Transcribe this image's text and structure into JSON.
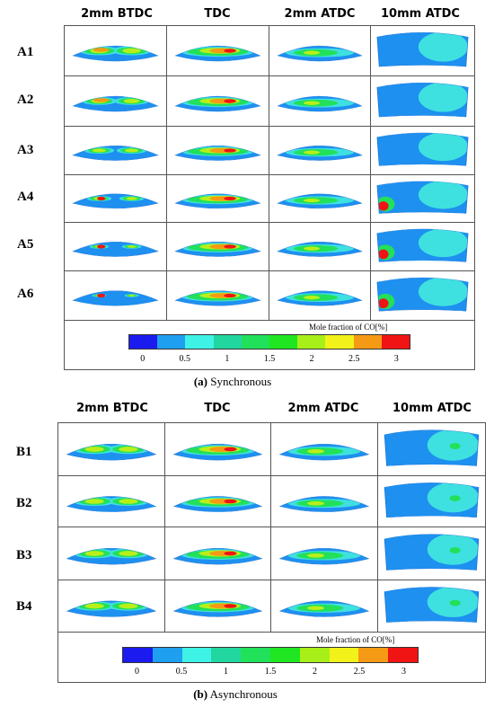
{
  "sections": [
    {
      "id": "a",
      "columns": [
        "2mm BTDC",
        "TDC",
        "2mm ATDC",
        "10mm ATDC"
      ],
      "rows": [
        "A1",
        "A2",
        "A3",
        "A4",
        "A5",
        "A6"
      ],
      "colorbar_title": "Mole fraction of CO[%]",
      "colorbar_ticks": [
        "0",
        "0.5",
        "1",
        "1.5",
        "2",
        "2.5",
        "3"
      ],
      "caption_letter": "(a)",
      "caption_text": "Synchronous"
    },
    {
      "id": "b",
      "columns": [
        "2mm BTDC",
        "TDC",
        "2mm ATDC",
        "10mm ATDC"
      ],
      "rows": [
        "B1",
        "B2",
        "B3",
        "B4"
      ],
      "colorbar_title": "Mole fraction of CO[%]",
      "colorbar_ticks": [
        "0",
        "0.5",
        "1",
        "1.5",
        "2",
        "2.5",
        "3"
      ],
      "caption_letter": "(b)",
      "caption_text": "Asynchronous"
    }
  ],
  "colorbar_colors": [
    "#1b1bf0",
    "#1e9ff0",
    "#3ff2e6",
    "#22d6a0",
    "#21e05a",
    "#20e622",
    "#a8ef1a",
    "#f2f21a",
    "#f59a14",
    "#f01414"
  ],
  "field_colors": {
    "background": "#1e90f0",
    "low": "#3fe0e0",
    "mid": "#22e05a",
    "high": "#b8ef1a",
    "peak": "#f59a14",
    "max": "#f01414"
  }
}
